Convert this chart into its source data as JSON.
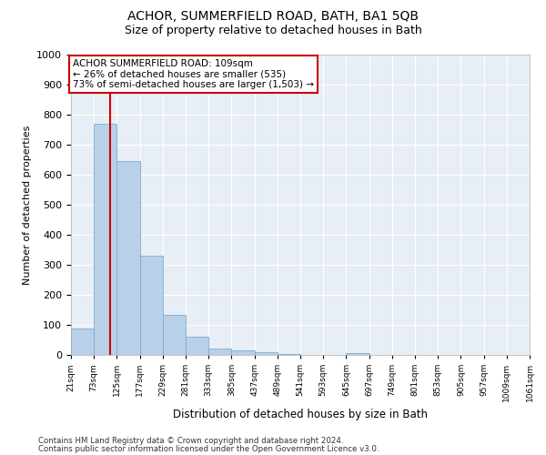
{
  "title": "ACHOR, SUMMERFIELD ROAD, BATH, BA1 5QB",
  "subtitle": "Size of property relative to detached houses in Bath",
  "xlabel": "Distribution of detached houses by size in Bath",
  "ylabel": "Number of detached properties",
  "bar_color": "#b8d0e8",
  "bar_edge_color": "#7aadd4",
  "background_color": "#e8eef5",
  "grid_color": "#ffffff",
  "vline_x": 109,
  "vline_color": "#cc0000",
  "annotation_line1": "ACHOR SUMMERFIELD ROAD: 109sqm",
  "annotation_line2": "← 26% of detached houses are smaller (535)",
  "annotation_line3": "73% of semi-detached houses are larger (1,503) →",
  "annotation_box_color": "#cc0000",
  "footnote1": "Contains HM Land Registry data © Crown copyright and database right 2024.",
  "footnote2": "Contains public sector information licensed under the Open Government Licence v3.0.",
  "bin_edges": [
    21,
    73,
    125,
    177,
    229,
    281,
    333,
    385,
    437,
    489,
    541,
    593,
    645,
    697,
    749,
    801,
    853,
    905,
    957,
    1009,
    1061
  ],
  "bin_heights": [
    88,
    770,
    645,
    330,
    132,
    62,
    22,
    15,
    10,
    3,
    0,
    0,
    5,
    0,
    0,
    0,
    0,
    0,
    0,
    0
  ],
  "ylim": [
    0,
    1000
  ],
  "ytick_step": 100
}
